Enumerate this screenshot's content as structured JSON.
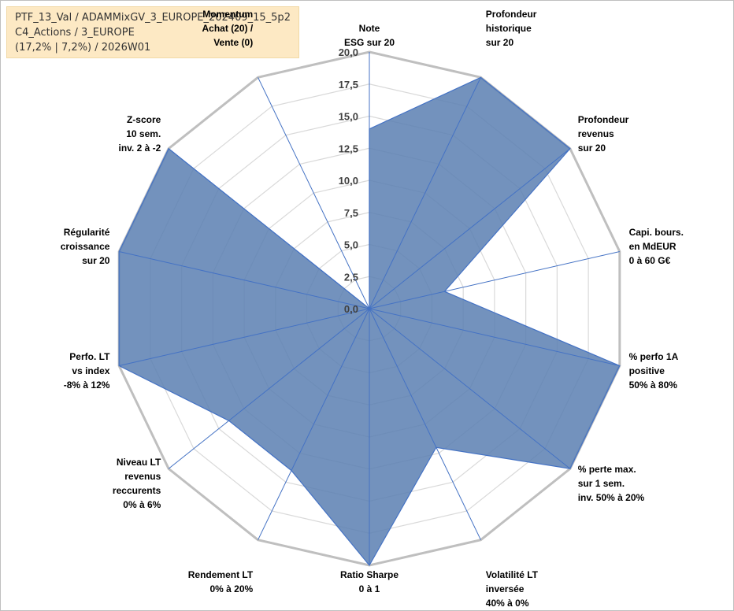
{
  "info": {
    "line1": "PTF_13_Val / ADAMMixGV_3_EUROPE_202409_15_5p2",
    "line2": "C4_Actions / 3_EUROPE",
    "line3": "(17,2% | 7,2%) / 2026W01"
  },
  "chart_data": {
    "type": "radar",
    "title": "",
    "rlim": [
      0,
      20
    ],
    "grid": true,
    "tick_labels": [
      "0,0",
      "2,5",
      "5,0",
      "7,5",
      "10,0",
      "12,5",
      "15,0",
      "17,5",
      "20,0"
    ],
    "axes": [
      {
        "lines": [
          "Note",
          "ESG sur 20"
        ],
        "value": 14.0
      },
      {
        "lines": [
          "Profondeur",
          "historique",
          "sur 20"
        ],
        "value": 20.0
      },
      {
        "lines": [
          "Profondeur",
          "revenus",
          "sur 20"
        ],
        "value": 20.0
      },
      {
        "lines": [
          "Capi. bours.",
          "en MdEUR",
          "0 à 60 G€"
        ],
        "value": 6.0
      },
      {
        "lines": [
          "% perfo 1A",
          "positive",
          "50% à 80%"
        ],
        "value": 20.0
      },
      {
        "lines": [
          "% perte max.",
          "sur 1 sem.",
          "inv. 50% à 20%"
        ],
        "value": 20.0
      },
      {
        "lines": [
          "Volatilité LT",
          "inversée",
          "40% à 0%"
        ],
        "value": 12.0
      },
      {
        "lines": [
          "Ratio Sharpe",
          "0 à 1"
        ],
        "value": 20.0
      },
      {
        "lines": [
          "Rendement LT",
          "0% à 20%"
        ],
        "value": 14.0
      },
      {
        "lines": [
          "Niveau LT",
          "revenus",
          "reccurents",
          "0% à 6%"
        ],
        "value": 14.0
      },
      {
        "lines": [
          "Perfo. LT",
          "vs index",
          "-8% à 12%"
        ],
        "value": 20.0
      },
      {
        "lines": [
          "Régularité",
          "croissance",
          "sur 20"
        ],
        "value": 20.0
      },
      {
        "lines": [
          "Z-score",
          "10 sem.",
          "inv. 2 à -2"
        ],
        "value": 20.0
      },
      {
        "lines": [
          "Momentum",
          "Achat (20) /",
          "Vente (0)"
        ],
        "value": 0.0,
        "first_line_dim": true
      }
    ],
    "series": [
      {
        "name": "PTF_13_Val",
        "color": "#5b7fb1"
      }
    ]
  },
  "colors": {
    "fill": "#5b7fb1",
    "outline": "#4472c4",
    "spoke": "#4472c4",
    "outer_ring": "#bfbfbf",
    "inner_grid": "#d9d9d9"
  }
}
